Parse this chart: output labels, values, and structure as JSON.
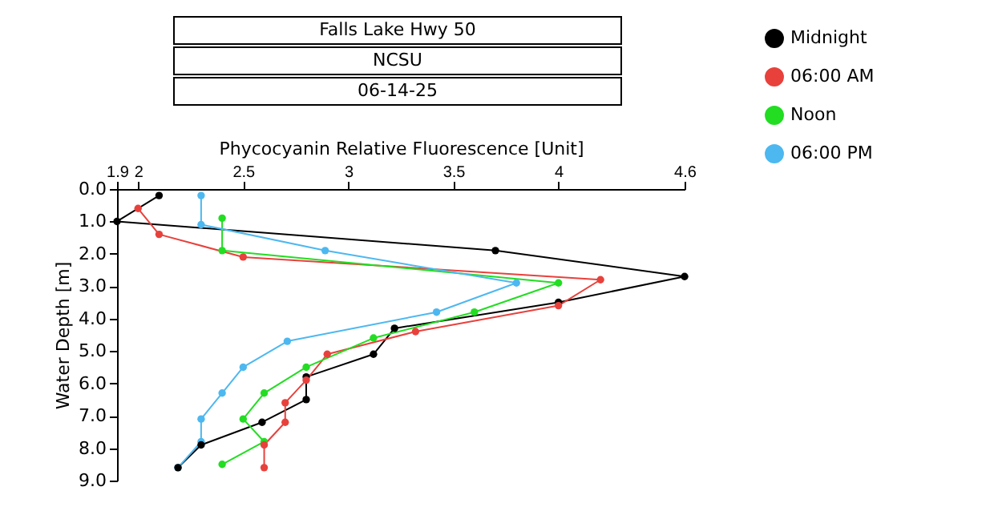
{
  "chart_data": {
    "type": "line",
    "title": "Falls Lake Hwy 50",
    "subtitle": "NCSU",
    "annotations": [
      "06-14-25"
    ],
    "xlabel": "Phycocyanin Relative Fluorescence [Unit]",
    "ylabel": "Water Depth [m]",
    "xlim": [
      1.9,
      4.6
    ],
    "xticks": [
      1.9,
      2,
      2.5,
      3,
      3.5,
      4,
      4.6
    ],
    "ylim": [
      9,
      0
    ],
    "yticks": [
      {
        "value": 0,
        "label": "0.0"
      },
      {
        "value": 1,
        "label": "1.0"
      },
      {
        "value": 2,
        "label": "2.0"
      },
      {
        "value": 3,
        "label": "3.0"
      },
      {
        "value": 4,
        "label": "4.0"
      },
      {
        "value": 5,
        "label": "5.0"
      },
      {
        "value": 6,
        "label": "6.0"
      },
      {
        "value": 7,
        "label": "7.0"
      },
      {
        "value": 8,
        "label": "8.0"
      },
      {
        "value": 9,
        "label": "9.0"
      }
    ],
    "grid": false,
    "legend": "top right",
    "marker": "circle",
    "line_style": "solid",
    "series": [
      {
        "name": "Midnight",
        "color": "#000000",
        "x": [
          2.1,
          1.9,
          3.7,
          4.6,
          4.0,
          3.22,
          3.12,
          2.8,
          2.8,
          2.59,
          2.3,
          2.19
        ],
        "values": [
          0.2,
          1.0,
          1.9,
          2.7,
          3.5,
          4.3,
          5.1,
          5.8,
          6.5,
          7.2,
          7.9,
          8.6
        ]
      },
      {
        "name": "06:00 AM",
        "color": "#e8413c",
        "x": [
          2.0,
          2.1,
          2.5,
          4.2,
          4.0,
          3.32,
          2.9,
          2.8,
          2.7,
          2.7,
          2.6,
          2.6
        ],
        "values": [
          0.6,
          1.4,
          2.1,
          2.8,
          3.6,
          4.4,
          5.1,
          5.9,
          6.6,
          7.2,
          7.9,
          8.6
        ]
      },
      {
        "name": "Noon",
        "color": "#22dd22",
        "x": [
          2.4,
          2.4,
          4.0,
          3.6,
          3.12,
          2.8,
          2.6,
          2.5,
          2.6,
          2.4
        ],
        "values": [
          0.9,
          1.9,
          2.9,
          3.8,
          4.6,
          5.5,
          6.3,
          7.1,
          7.8,
          8.5
        ]
      },
      {
        "name": "06:00 PM",
        "color": "#4db8f0",
        "x": [
          2.3,
          2.3,
          2.89,
          3.8,
          3.42,
          2.71,
          2.5,
          2.4,
          2.3,
          2.3,
          2.19
        ],
        "values": [
          0.2,
          1.1,
          1.9,
          2.9,
          3.8,
          4.7,
          5.5,
          6.3,
          7.1,
          7.8,
          8.6
        ]
      }
    ]
  }
}
